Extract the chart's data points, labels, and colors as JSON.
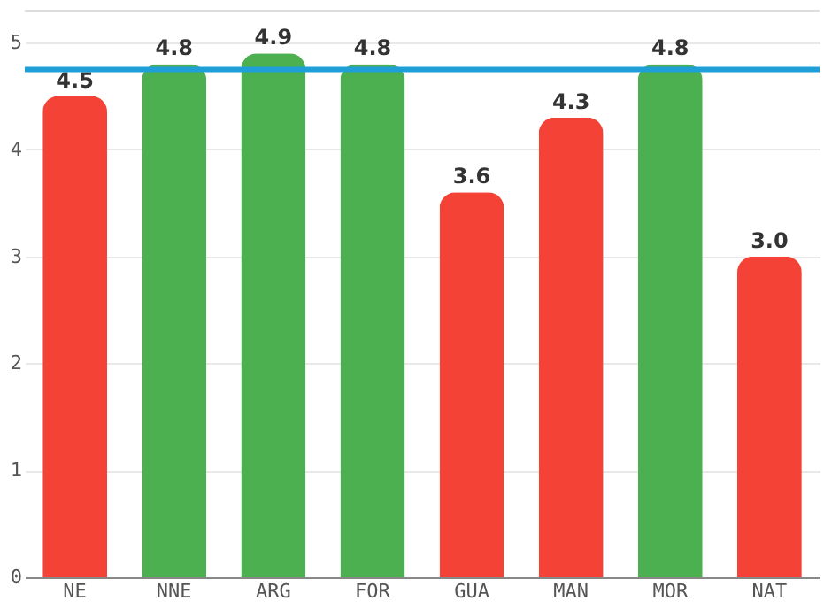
{
  "chart_data": {
    "type": "bar",
    "categories": [
      "NE",
      "NNE",
      "ARG",
      "FOR",
      "GUA",
      "MAN",
      "MOR",
      "NAT"
    ],
    "values": [
      4.5,
      4.8,
      4.9,
      4.8,
      3.6,
      4.3,
      4.8,
      3.0
    ],
    "colors": [
      "#f44336",
      "#4caf50",
      "#4caf50",
      "#4caf50",
      "#f44336",
      "#f44336",
      "#4caf50",
      "#f44336"
    ],
    "value_labels": [
      "4.5",
      "4.8",
      "4.9",
      "4.8",
      "3.6",
      "4.3",
      "4.8",
      "3.0"
    ],
    "ylim": [
      0,
      5.3
    ],
    "yticks": [
      0,
      1,
      2,
      3,
      4,
      5
    ],
    "grid": "y",
    "ref_lines": [
      {
        "axis": "y",
        "value": 4.75,
        "color": "#1e9fd8"
      }
    ]
  }
}
